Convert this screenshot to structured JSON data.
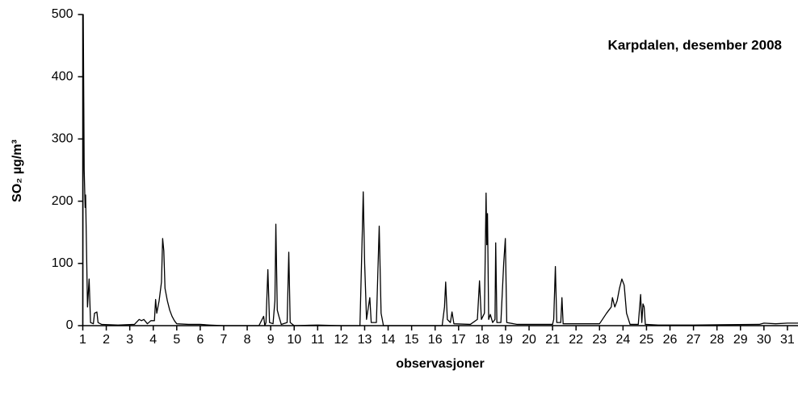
{
  "chart_data": {
    "type": "line",
    "title": "Karpdalen, desember 2008",
    "x_label": "observasjoner",
    "y_label": "SO₂ µg/m³",
    "xlim": [
      1,
      31.45
    ],
    "ylim": [
      0,
      500
    ],
    "xticks": [
      1,
      2,
      3,
      4,
      5,
      6,
      7,
      8,
      9,
      10,
      11,
      12,
      13,
      14,
      15,
      16,
      17,
      18,
      19,
      20,
      21,
      22,
      23,
      24,
      25,
      26,
      27,
      28,
      29,
      30,
      31
    ],
    "yticks": [
      0,
      100,
      200,
      300,
      400,
      500
    ],
    "series": [
      {
        "name": "SO2",
        "color": "#000000",
        "x": [
          1.0,
          1.02,
          1.06,
          1.1,
          1.12,
          1.2,
          1.27,
          1.33,
          1.45,
          1.5,
          1.6,
          1.65,
          1.8,
          2.5,
          3.2,
          3.4,
          3.5,
          3.6,
          3.75,
          3.9,
          4.05,
          4.1,
          4.15,
          4.25,
          4.35,
          4.4,
          4.45,
          4.5,
          4.6,
          4.7,
          4.8,
          4.9,
          5.0,
          5.5,
          6.0,
          6.4,
          7.0,
          8.5,
          8.7,
          8.75,
          8.8,
          8.88,
          8.95,
          9.1,
          9.18,
          9.22,
          9.28,
          9.35,
          9.45,
          9.7,
          9.77,
          9.83,
          10.0,
          11.0,
          12.0,
          12.8,
          12.9,
          12.94,
          13.0,
          13.08,
          13.18,
          13.22,
          13.28,
          13.5,
          13.62,
          13.7,
          13.8,
          15.0,
          16.3,
          16.4,
          16.45,
          16.52,
          16.65,
          16.72,
          16.8,
          17.5,
          17.8,
          17.89,
          17.97,
          18.1,
          18.17,
          18.2,
          18.23,
          18.28,
          18.35,
          18.45,
          18.55,
          18.58,
          18.63,
          18.8,
          18.92,
          18.99,
          19.05,
          19.5,
          21.0,
          21.05,
          21.12,
          21.18,
          21.35,
          21.4,
          21.45,
          23.0,
          23.3,
          23.4,
          23.5,
          23.55,
          23.65,
          23.75,
          23.85,
          23.95,
          24.05,
          24.15,
          24.3,
          24.65,
          24.75,
          24.8,
          24.85,
          24.9,
          24.95,
          25.5,
          27.0,
          29.8,
          30.0,
          30.5,
          31.0,
          31.45
        ],
        "values": [
          0,
          500,
          250,
          190,
          210,
          30,
          75,
          5,
          3,
          20,
          22,
          5,
          2,
          1,
          2,
          10,
          8,
          10,
          3,
          8,
          8,
          42,
          20,
          40,
          70,
          140,
          120,
          60,
          40,
          25,
          15,
          8,
          3,
          2,
          2,
          1,
          0,
          0,
          15,
          0,
          5,
          90,
          5,
          3,
          40,
          163,
          25,
          15,
          2,
          5,
          118,
          5,
          0,
          1,
          0,
          0,
          150,
          215,
          100,
          10,
          35,
          45,
          5,
          5,
          160,
          20,
          0,
          0,
          0,
          30,
          70,
          10,
          5,
          22,
          3,
          2,
          10,
          72,
          10,
          20,
          213,
          130,
          180,
          10,
          18,
          5,
          10,
          133,
          5,
          5,
          100,
          140,
          5,
          2,
          2,
          10,
          95,
          5,
          5,
          45,
          3,
          3,
          20,
          25,
          30,
          45,
          30,
          40,
          60,
          75,
          65,
          20,
          2,
          2,
          50,
          5,
          35,
          30,
          2,
          1,
          1,
          2,
          4,
          3,
          4,
          4
        ]
      }
    ]
  }
}
